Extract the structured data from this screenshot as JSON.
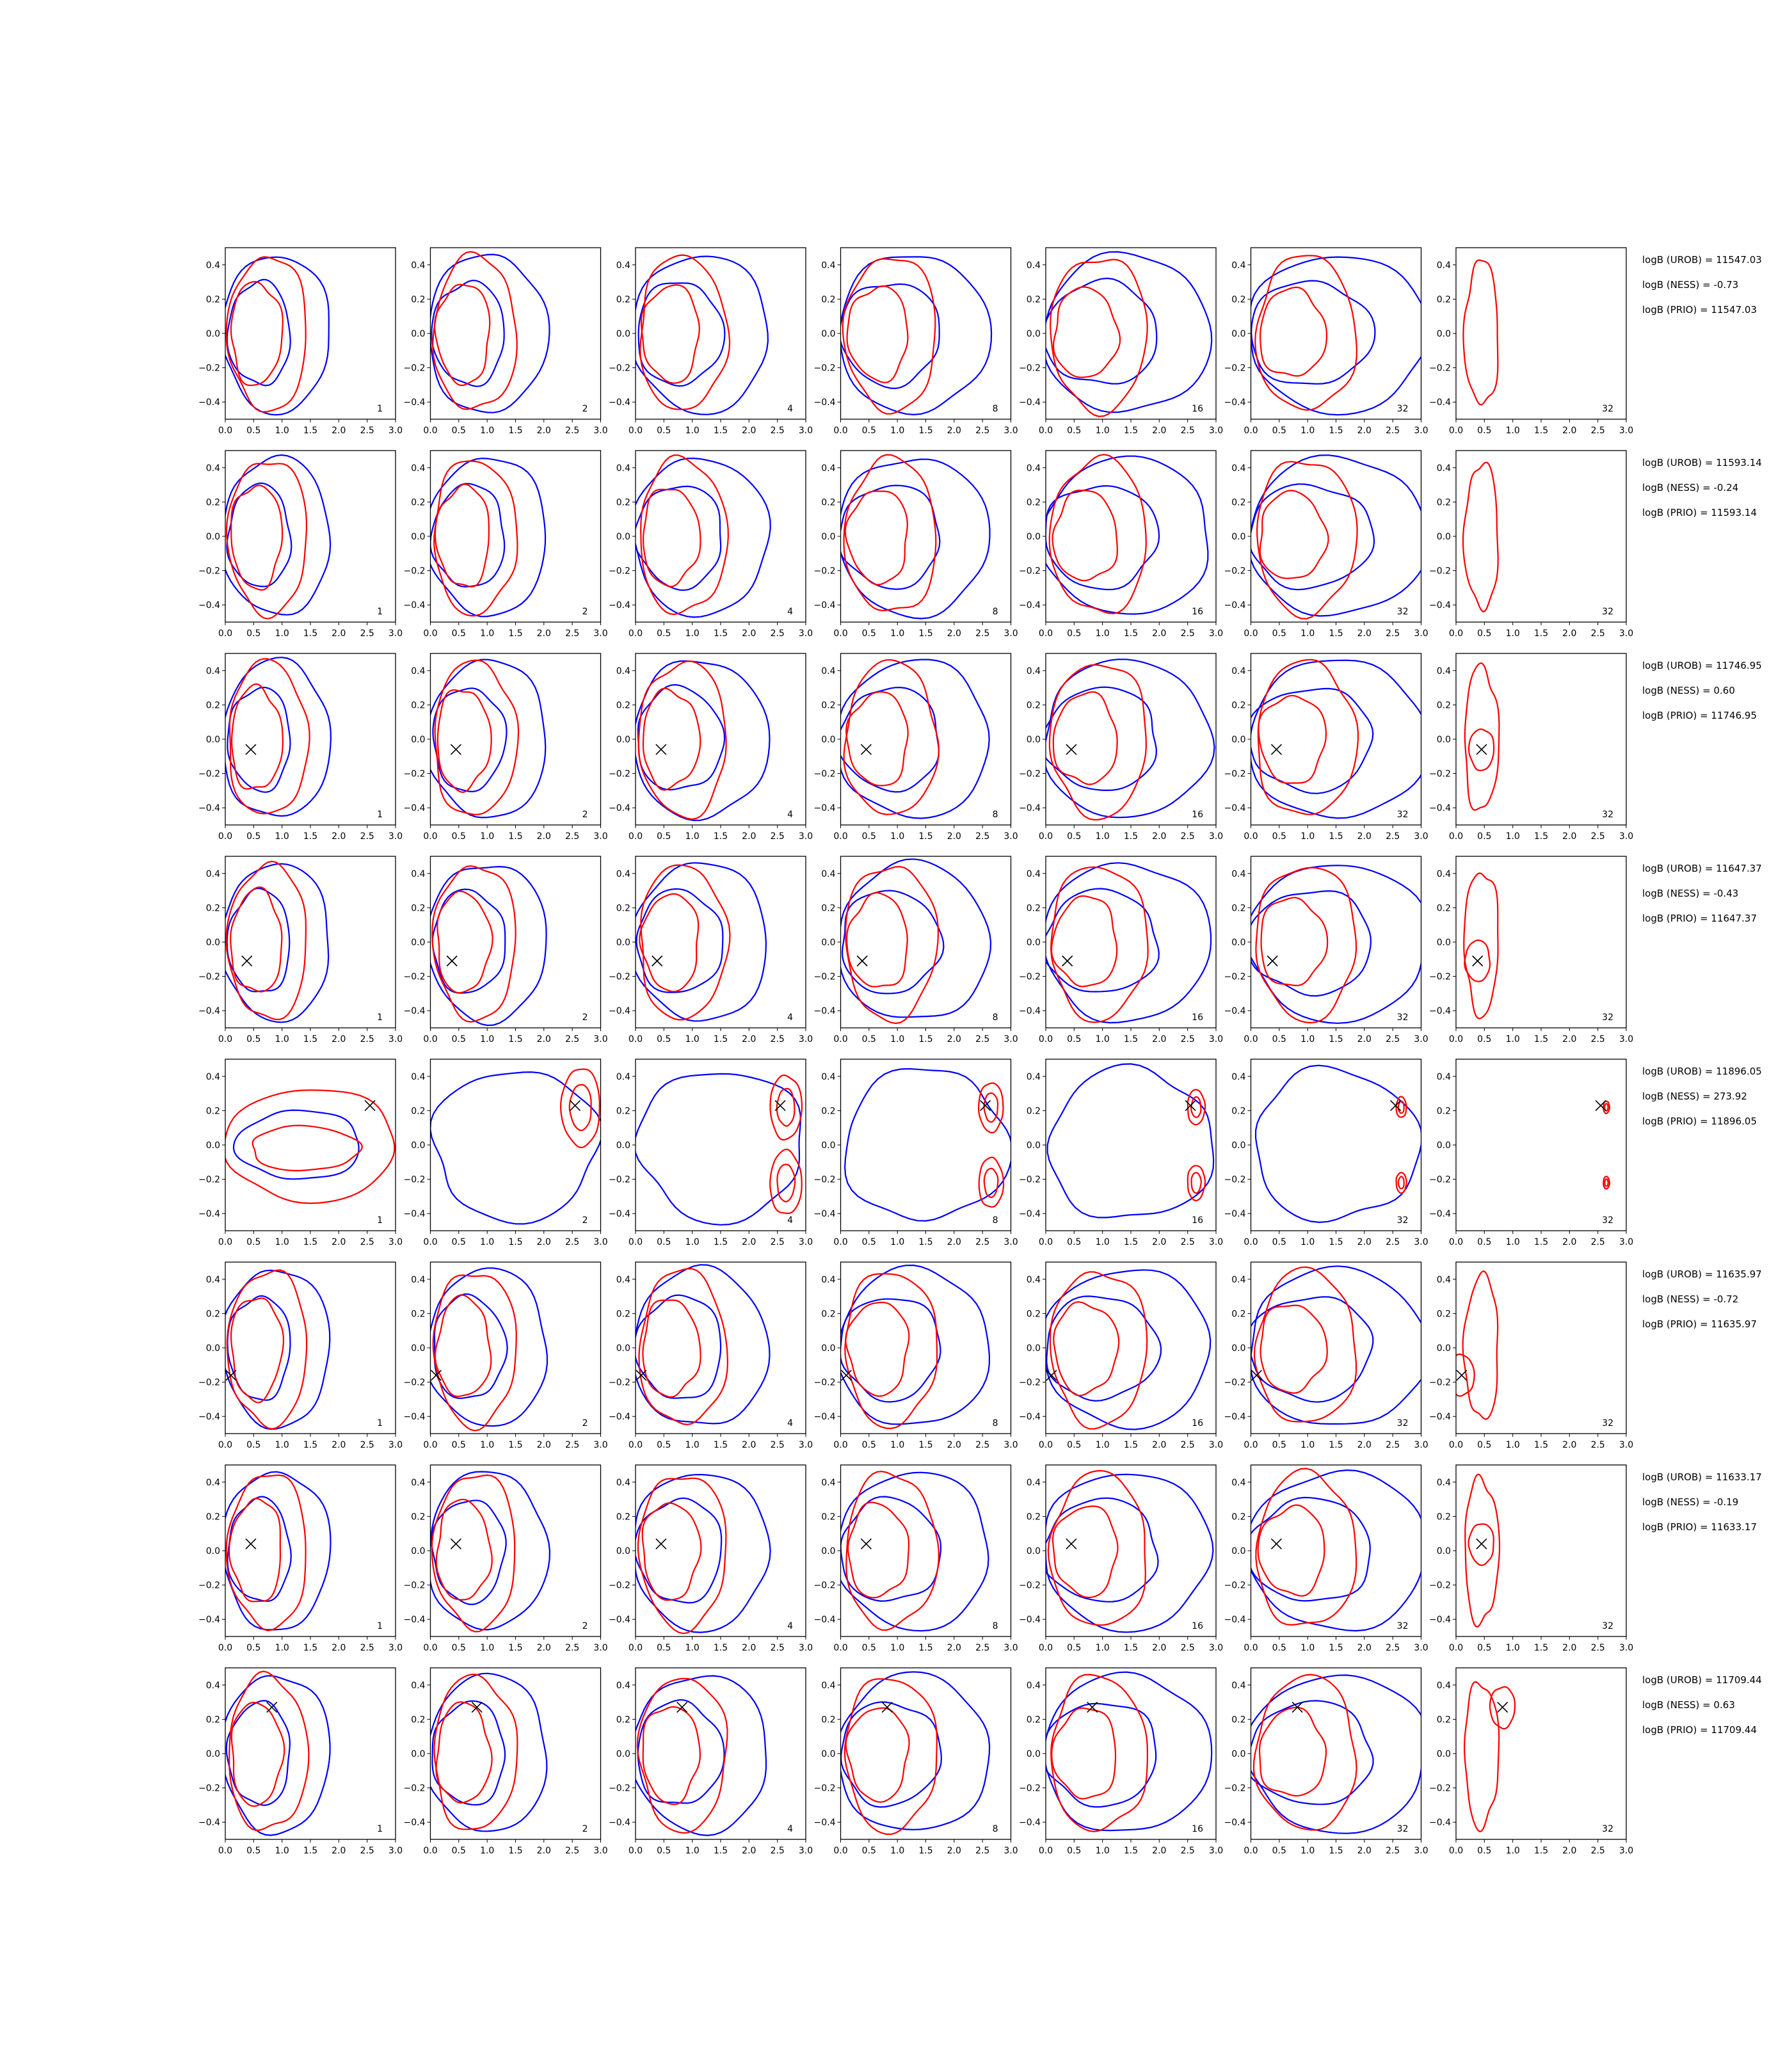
{
  "chart_data": {
    "type": "contour-grid",
    "rows": 8,
    "columns": 7,
    "xlim": [
      0,
      3
    ],
    "ylim": [
      -0.5,
      0.5
    ],
    "x_ticks": [
      "0.0",
      "0.5",
      "1.0",
      "1.5",
      "2.0",
      "2.5",
      "3.0"
    ],
    "y_ticks": [
      "−0.4",
      "−0.2",
      "0.0",
      "0.2",
      "0.4"
    ],
    "y_tick_values": [
      -0.4,
      -0.2,
      0.0,
      0.2,
      0.4
    ],
    "panel_labels": [
      "1",
      "2",
      "4",
      "8",
      "16",
      "32",
      "32"
    ],
    "colors": {
      "red_contours": "#ff0000",
      "blue_contours": "#0000ff",
      "marker": "#000000"
    },
    "rows_data": [
      {
        "marker": null,
        "logB": [
          "logB (UROB) = 11547.03",
          "logB (NESS) = -0.73",
          "logB (PRIO) = 11547.03"
        ]
      },
      {
        "marker": null,
        "logB": [
          "logB (UROB) = 11593.14",
          "logB (NESS) = -0.24",
          "logB (PRIO) = 11593.14"
        ]
      },
      {
        "marker": [
          0.45,
          -0.06
        ],
        "logB": [
          "logB (UROB) = 11746.95",
          "logB (NESS) = 0.60",
          "logB (PRIO) = 11746.95"
        ]
      },
      {
        "marker": [
          0.38,
          -0.11
        ],
        "logB": [
          "logB (UROB) = 11647.37",
          "logB (NESS) = -0.43",
          "logB (PRIO) = 11647.37"
        ]
      },
      {
        "marker": [
          2.55,
          0.23
        ],
        "logB": [
          "logB (UROB) = 11896.05",
          "logB (NESS) = 273.92",
          "logB (PRIO) = 11896.05"
        ]
      },
      {
        "marker": [
          0.1,
          -0.16
        ],
        "logB": [
          "logB (UROB) = 11635.97",
          "logB (NESS) = -0.72",
          "logB (PRIO) = 11635.97"
        ]
      },
      {
        "marker": [
          0.45,
          0.04
        ],
        "logB": [
          "logB (UROB) = 11633.17",
          "logB (NESS) = -0.19",
          "logB (PRIO) = 11633.17"
        ]
      },
      {
        "marker": [
          0.82,
          0.27
        ],
        "logB": [
          "logB (UROB) = 11709.44",
          "logB (NESS) = 0.63",
          "logB (PRIO) = 11709.44"
        ]
      }
    ]
  }
}
